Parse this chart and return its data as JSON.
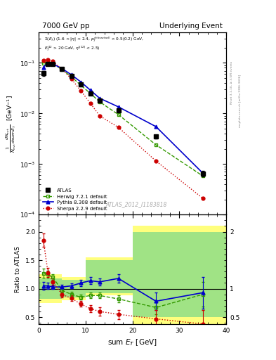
{
  "title_left": "7000 GeV pp",
  "title_right": "Underlying Event",
  "xlabel": "sum E$_T$ [GeV]",
  "ylabel_ratio": "Ratio to ATLAS",
  "annotation": "ATLAS_2012_I1183818",
  "right_label": "Rivet 3.1.10, ≥ 3.5M events",
  "right_label2": "mcplots.cern.ch [arXiv:1306.3436]",
  "atlas_x": [
    1,
    2,
    3,
    5,
    7,
    9,
    11,
    13,
    17,
    25,
    35
  ],
  "atlas_y": [
    0.062,
    0.095,
    0.095,
    0.075,
    0.055,
    0.038,
    0.025,
    0.018,
    0.0115,
    0.0035,
    0.00065
  ],
  "atlas_ye": [
    0.006,
    0.004,
    0.004,
    0.003,
    0.002,
    0.002,
    0.001,
    0.001,
    0.0005,
    0.0003,
    8e-05
  ],
  "herwig_x": [
    1,
    2,
    3,
    5,
    7,
    9,
    11,
    13,
    17,
    25,
    35
  ],
  "herwig_y": [
    0.098,
    0.105,
    0.098,
    0.073,
    0.053,
    0.036,
    0.025,
    0.017,
    0.0095,
    0.0024,
    0.00058
  ],
  "pythia_x": [
    1,
    2,
    3,
    5,
    7,
    9,
    11,
    13,
    17,
    25,
    35
  ],
  "pythia_y": [
    0.082,
    0.102,
    0.096,
    0.077,
    0.058,
    0.042,
    0.029,
    0.02,
    0.0135,
    0.0055,
    0.00066
  ],
  "sherpa_x": [
    1,
    2,
    3,
    5,
    7,
    9,
    11,
    13,
    17,
    25,
    35
  ],
  "sherpa_y": [
    0.112,
    0.115,
    0.107,
    0.075,
    0.048,
    0.028,
    0.016,
    0.009,
    0.0053,
    0.00115,
    0.00021
  ],
  "ratio_x": [
    1,
    2,
    3,
    5,
    7,
    9,
    11,
    13,
    17,
    25,
    35
  ],
  "herwig_ratio": [
    1.27,
    1.25,
    1.2,
    0.97,
    0.9,
    0.85,
    0.88,
    0.88,
    0.82,
    0.67,
    0.9
  ],
  "pythia_ratio": [
    1.05,
    1.05,
    1.03,
    1.03,
    1.05,
    1.1,
    1.14,
    1.12,
    1.18,
    0.78,
    0.93
  ],
  "sherpa_ratio": [
    1.85,
    1.28,
    1.12,
    0.9,
    0.83,
    0.73,
    0.65,
    0.6,
    0.55,
    0.47,
    0.38
  ],
  "herwig_ratio_ye": [
    0.08,
    0.06,
    0.05,
    0.04,
    0.04,
    0.04,
    0.05,
    0.05,
    0.06,
    0.12,
    0.22
  ],
  "pythia_ratio_ye": [
    0.07,
    0.05,
    0.04,
    0.04,
    0.04,
    0.05,
    0.06,
    0.06,
    0.08,
    0.15,
    0.28
  ],
  "sherpa_ratio_ye": [
    0.12,
    0.08,
    0.06,
    0.05,
    0.05,
    0.05,
    0.06,
    0.07,
    0.08,
    0.15,
    0.25
  ],
  "atlas_color": "#000000",
  "herwig_color": "#339900",
  "pythia_color": "#0000cc",
  "sherpa_color": "#cc0000",
  "ylim_main": [
    0.0001,
    0.4
  ],
  "ylim_ratio": [
    0.38,
    2.3
  ],
  "xlim": [
    0,
    40
  ]
}
